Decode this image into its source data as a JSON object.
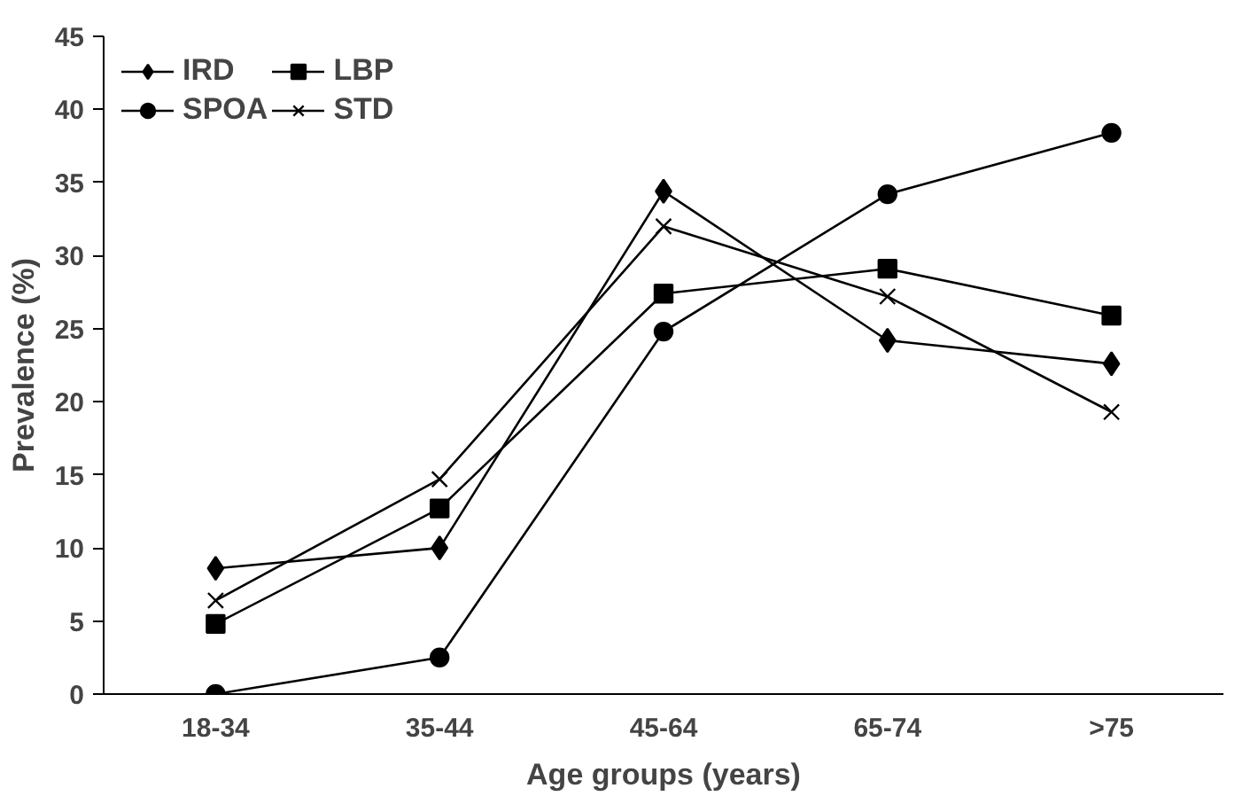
{
  "chart_data": {
    "type": "line",
    "xlabel": "Age groups (years)",
    "ylabel": "Prevalence (%)",
    "categories": [
      "18-34",
      "35-44",
      "45-64",
      "65-74",
      ">75"
    ],
    "ylim": [
      0,
      45
    ],
    "yticks": [
      0,
      5,
      10,
      15,
      20,
      25,
      30,
      35,
      40,
      45
    ],
    "grid": false,
    "legend": "top left",
    "line_style": "solid",
    "series": [
      {
        "name": "IRD",
        "color": "#000000",
        "marker": "diamond",
        "values": [
          8.6,
          10.0,
          34.4,
          24.2,
          22.6
        ]
      },
      {
        "name": "SPOA",
        "color": "#000000",
        "marker": "circle",
        "values": [
          0.0,
          2.5,
          24.8,
          34.2,
          38.4
        ]
      },
      {
        "name": "LBP",
        "color": "#000000",
        "marker": "square",
        "values": [
          4.8,
          12.7,
          27.4,
          29.1,
          25.9
        ]
      },
      {
        "name": "STD",
        "color": "#000000",
        "marker": "cross",
        "values": [
          6.4,
          14.7,
          32.0,
          27.2,
          19.3
        ]
      }
    ]
  }
}
